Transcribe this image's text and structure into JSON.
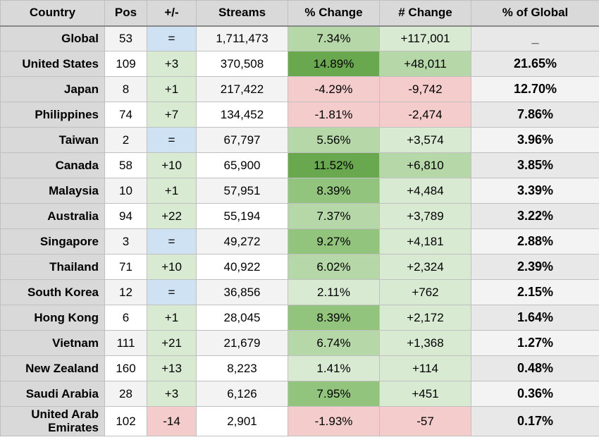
{
  "table": {
    "columns": [
      "Country",
      "Pos",
      "+/-",
      "Streams",
      "% Change",
      "# Change",
      "% of Global"
    ],
    "colors": {
      "header_bg": "#d9d9d9",
      "country_bg": "#d9d9d9",
      "border": "#c0c0c0",
      "stripe_odd": "#f3f3f3",
      "stripe_even": "#ffffff",
      "pm_equal_bg": "#cfe2f3",
      "pm_pos_bg": "#d9ead3",
      "pm_neg_bg": "#f4cccc",
      "pct_green_dark": "#6aa84f",
      "pct_green_mid": "#93c47d",
      "pct_green_light": "#b6d7a8",
      "pct_green_pale": "#d9ead3",
      "pct_red_mid": "#f4cccc",
      "chg_green_mid": "#b6d7a8",
      "chg_green_pale": "#d9ead3",
      "chg_red_mid": "#f4cccc",
      "glb_even_bg": "#e8e8e8"
    },
    "rows": [
      {
        "country": "Global",
        "pos": "53",
        "pm": "=",
        "pm_bg": "#cfe2f3",
        "streams": "1,711,473",
        "pct": "7.34%",
        "pct_bg": "#b6d7a8",
        "chg": "+117,001",
        "chg_bg": "#d9ead3",
        "glb": "_",
        "glb_bg": "#e8e8e8",
        "stripe": "odd"
      },
      {
        "country": "United States",
        "pos": "109",
        "pm": "+3",
        "pm_bg": "#d9ead3",
        "streams": "370,508",
        "pct": "14.89%",
        "pct_bg": "#6aa84f",
        "chg": "+48,011",
        "chg_bg": "#b6d7a8",
        "glb": "21.65%",
        "glb_bg": "#e8e8e8",
        "stripe": "even"
      },
      {
        "country": "Japan",
        "pos": "8",
        "pm": "+1",
        "pm_bg": "#d9ead3",
        "streams": "217,422",
        "pct": "-4.29%",
        "pct_bg": "#f4cccc",
        "chg": "-9,742",
        "chg_bg": "#f4cccc",
        "glb": "12.70%",
        "glb_bg": "#f3f3f3",
        "stripe": "odd"
      },
      {
        "country": "Philippines",
        "pos": "74",
        "pm": "+7",
        "pm_bg": "#d9ead3",
        "streams": "134,452",
        "pct": "-1.81%",
        "pct_bg": "#f4cccc",
        "chg": "-2,474",
        "chg_bg": "#f4cccc",
        "glb": "7.86%",
        "glb_bg": "#e8e8e8",
        "stripe": "even"
      },
      {
        "country": "Taiwan",
        "pos": "2",
        "pm": "=",
        "pm_bg": "#cfe2f3",
        "streams": "67,797",
        "pct": "5.56%",
        "pct_bg": "#b6d7a8",
        "chg": "+3,574",
        "chg_bg": "#d9ead3",
        "glb": "3.96%",
        "glb_bg": "#f3f3f3",
        "stripe": "odd"
      },
      {
        "country": "Canada",
        "pos": "58",
        "pm": "+10",
        "pm_bg": "#d9ead3",
        "streams": "65,900",
        "pct": "11.52%",
        "pct_bg": "#6aa84f",
        "chg": "+6,810",
        "chg_bg": "#b6d7a8",
        "glb": "3.85%",
        "glb_bg": "#e8e8e8",
        "stripe": "even"
      },
      {
        "country": "Malaysia",
        "pos": "10",
        "pm": "+1",
        "pm_bg": "#d9ead3",
        "streams": "57,951",
        "pct": "8.39%",
        "pct_bg": "#93c47d",
        "chg": "+4,484",
        "chg_bg": "#d9ead3",
        "glb": "3.39%",
        "glb_bg": "#f3f3f3",
        "stripe": "odd"
      },
      {
        "country": "Australia",
        "pos": "94",
        "pm": "+22",
        "pm_bg": "#d9ead3",
        "streams": "55,194",
        "pct": "7.37%",
        "pct_bg": "#b6d7a8",
        "chg": "+3,789",
        "chg_bg": "#d9ead3",
        "glb": "3.22%",
        "glb_bg": "#e8e8e8",
        "stripe": "even"
      },
      {
        "country": "Singapore",
        "pos": "3",
        "pm": "=",
        "pm_bg": "#cfe2f3",
        "streams": "49,272",
        "pct": "9.27%",
        "pct_bg": "#93c47d",
        "chg": "+4,181",
        "chg_bg": "#d9ead3",
        "glb": "2.88%",
        "glb_bg": "#f3f3f3",
        "stripe": "odd"
      },
      {
        "country": "Thailand",
        "pos": "71",
        "pm": "+10",
        "pm_bg": "#d9ead3",
        "streams": "40,922",
        "pct": "6.02%",
        "pct_bg": "#b6d7a8",
        "chg": "+2,324",
        "chg_bg": "#d9ead3",
        "glb": "2.39%",
        "glb_bg": "#e8e8e8",
        "stripe": "even"
      },
      {
        "country": "South Korea",
        "pos": "12",
        "pm": "=",
        "pm_bg": "#cfe2f3",
        "streams": "36,856",
        "pct": "2.11%",
        "pct_bg": "#d9ead3",
        "chg": "+762",
        "chg_bg": "#d9ead3",
        "glb": "2.15%",
        "glb_bg": "#f3f3f3",
        "stripe": "odd"
      },
      {
        "country": "Hong Kong",
        "pos": "6",
        "pm": "+1",
        "pm_bg": "#d9ead3",
        "streams": "28,045",
        "pct": "8.39%",
        "pct_bg": "#93c47d",
        "chg": "+2,172",
        "chg_bg": "#d9ead3",
        "glb": "1.64%",
        "glb_bg": "#e8e8e8",
        "stripe": "even"
      },
      {
        "country": "Vietnam",
        "pos": "111",
        "pm": "+21",
        "pm_bg": "#d9ead3",
        "streams": "21,679",
        "pct": "6.74%",
        "pct_bg": "#b6d7a8",
        "chg": "+1,368",
        "chg_bg": "#d9ead3",
        "glb": "1.27%",
        "glb_bg": "#f3f3f3",
        "stripe": "odd"
      },
      {
        "country": "New Zealand",
        "pos": "160",
        "pm": "+13",
        "pm_bg": "#d9ead3",
        "streams": "8,223",
        "pct": "1.41%",
        "pct_bg": "#d9ead3",
        "chg": "+114",
        "chg_bg": "#d9ead3",
        "glb": "0.48%",
        "glb_bg": "#e8e8e8",
        "stripe": "even"
      },
      {
        "country": "Saudi Arabia",
        "pos": "28",
        "pm": "+3",
        "pm_bg": "#d9ead3",
        "streams": "6,126",
        "pct": "7.95%",
        "pct_bg": "#93c47d",
        "chg": "+451",
        "chg_bg": "#d9ead3",
        "glb": "0.36%",
        "glb_bg": "#f3f3f3",
        "stripe": "odd"
      },
      {
        "country": "United Arab Emirates",
        "pos": "102",
        "pm": "-14",
        "pm_bg": "#f4cccc",
        "streams": "2,901",
        "pct": "-1.93%",
        "pct_bg": "#f4cccc",
        "chg": "-57",
        "chg_bg": "#f4cccc",
        "glb": "0.17%",
        "glb_bg": "#e8e8e8",
        "stripe": "even",
        "wrap": true
      }
    ]
  }
}
